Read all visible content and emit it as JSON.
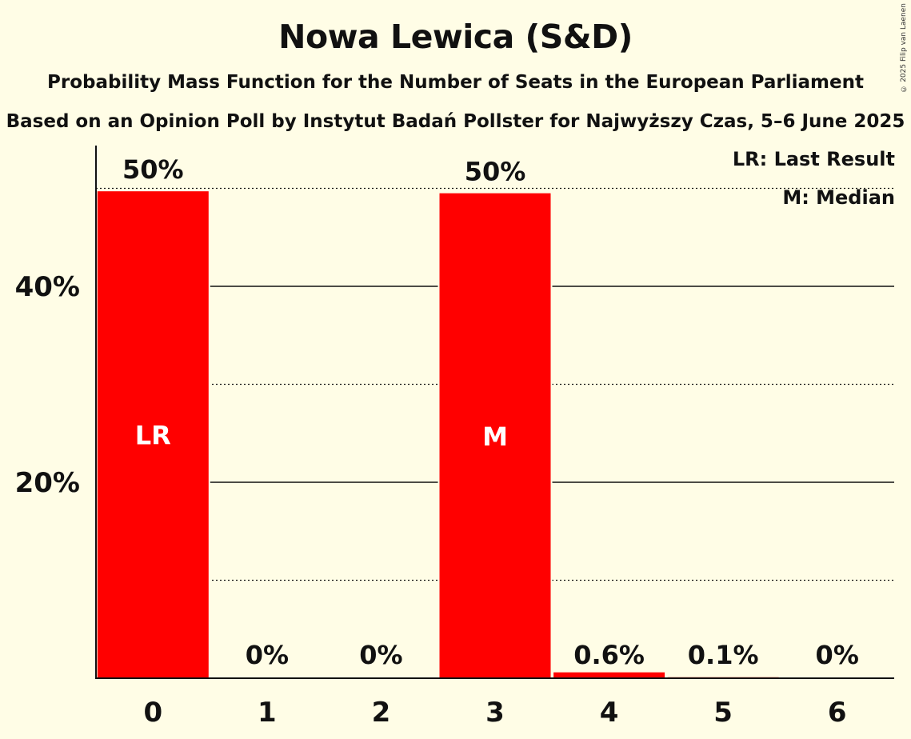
{
  "title": "Nowa Lewica (S&D)",
  "subtitle": "Probability Mass Function for the Number of Seats in the European Parliament",
  "subtitle2": "Based on an Opinion Poll by Instytut Badań Pollster for Najwyższy Czas, 5–6 June 2025",
  "copyright": "© 2025 Filip van Laenen",
  "legend": {
    "lr": "LR: Last Result",
    "m": "M: Median"
  },
  "colors": {
    "bar": "#ff0000",
    "background": "#fffde6",
    "text": "#111111"
  },
  "chart_data": {
    "type": "bar",
    "categories": [
      "0",
      "1",
      "2",
      "3",
      "4",
      "5",
      "6"
    ],
    "values": [
      49.7,
      0,
      0,
      49.5,
      0.6,
      0.1,
      0
    ],
    "value_labels": [
      "50%",
      "0%",
      "0%",
      "50%",
      "0.6%",
      "0.1%",
      "0%"
    ],
    "bar_markers": [
      "LR",
      "",
      "",
      "M",
      "",
      "",
      ""
    ],
    "ylim": [
      0,
      54
    ],
    "y_ticks": [
      {
        "value": 20,
        "label": "20%"
      },
      {
        "value": 40,
        "label": "40%"
      }
    ],
    "minor_gridlines": [
      10,
      30,
      50
    ],
    "grid": true,
    "legend_placement": "top-right"
  }
}
